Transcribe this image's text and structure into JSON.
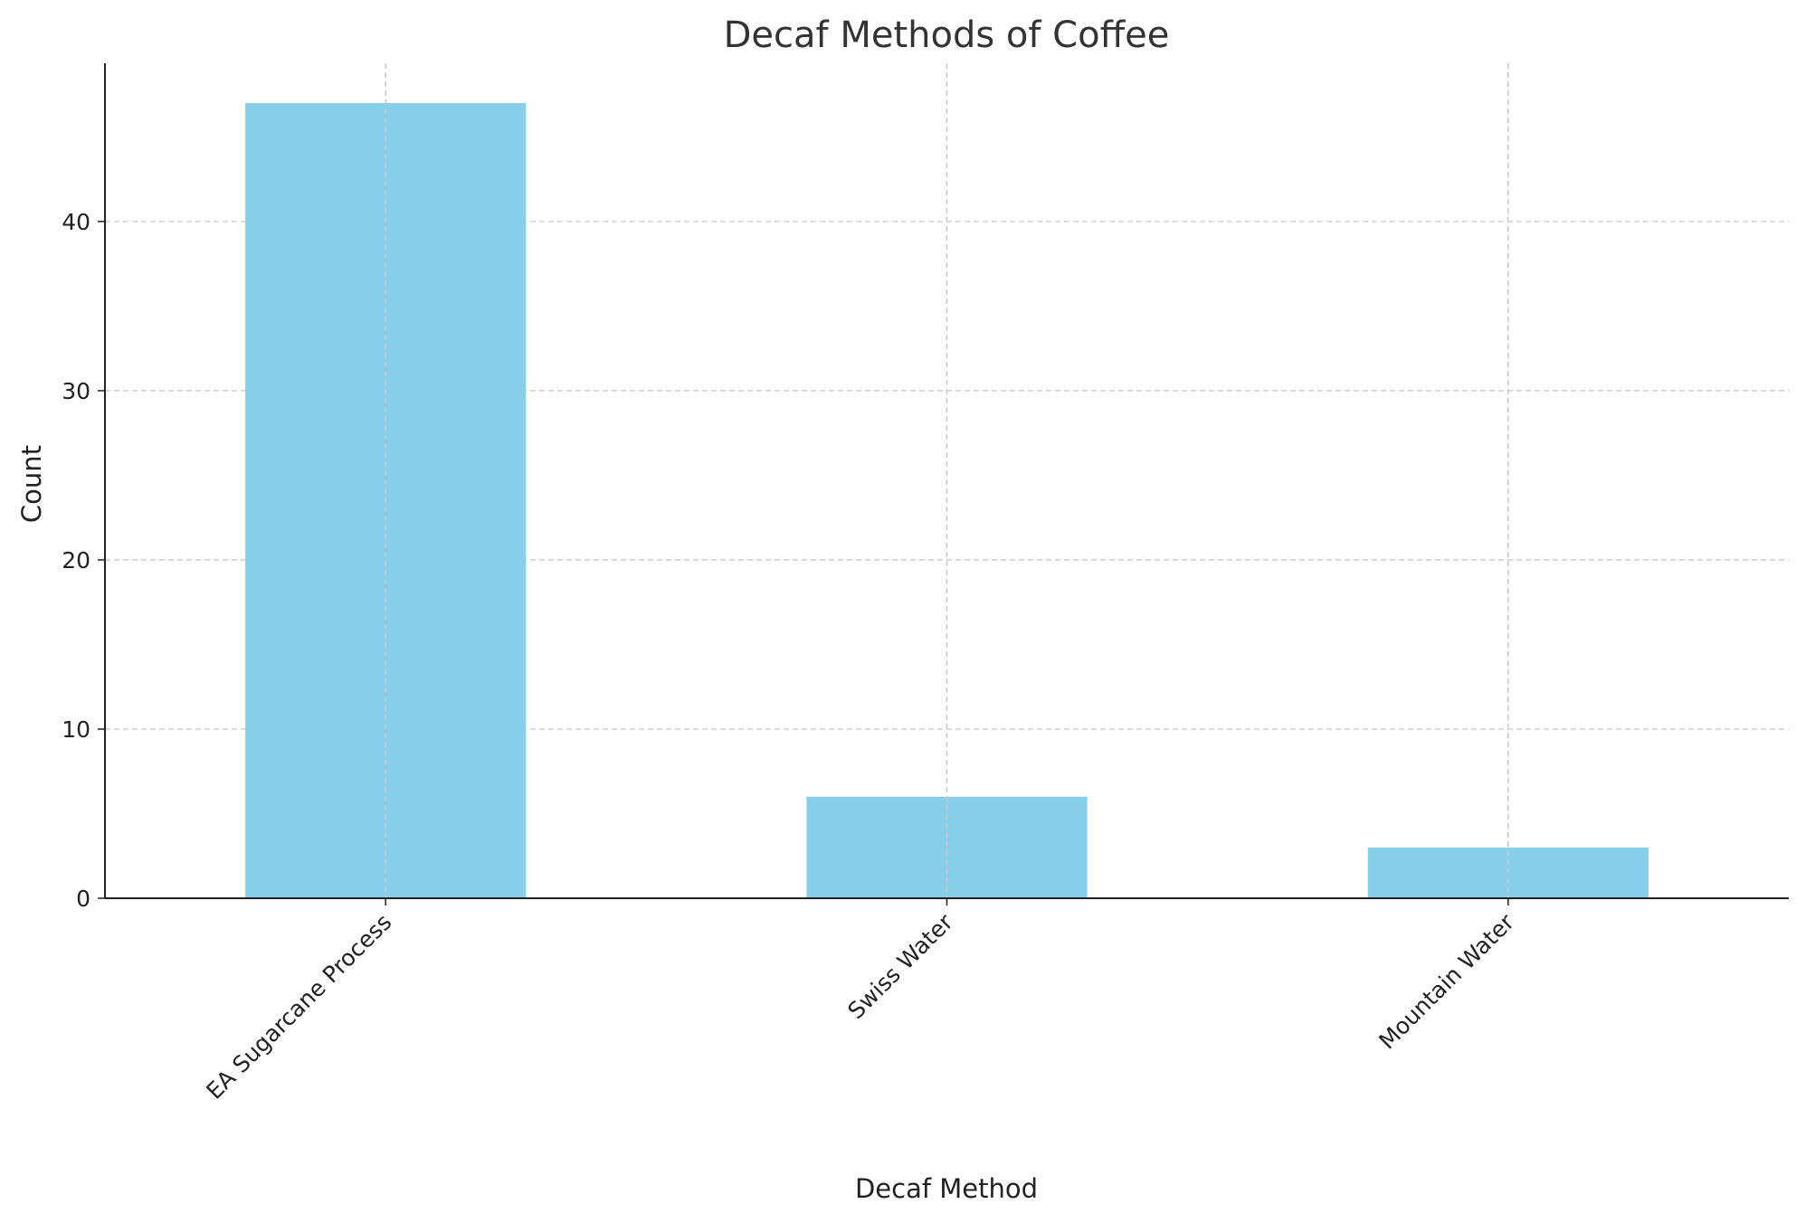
{
  "chart_data": {
    "type": "bar",
    "title": "Decaf Methods of Coffee",
    "x_label": "Decaf Method",
    "y_label": "Count",
    "categories": [
      "EA Sugarcane Process",
      "Swiss Water",
      "Mountain Water"
    ],
    "values": [
      47,
      6,
      3
    ],
    "color": "#87ceeb",
    "ylim": [
      0,
      49.35
    ],
    "yticks": [
      0,
      10,
      20,
      30,
      40
    ],
    "grid": true
  }
}
